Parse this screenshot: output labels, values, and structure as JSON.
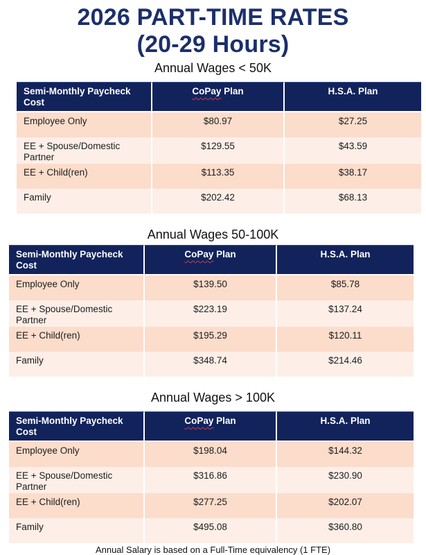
{
  "page": {
    "title_line1": "2026 PART-TIME RATES",
    "title_line2": "(20-29 Hours)",
    "footer": "Annual Salary is based on a Full-Time equivalency (1 FTE)"
  },
  "colors": {
    "header_navy": "#12235c",
    "title_navy": "#1b2f6b",
    "row_dark_peach": "#fcdccb",
    "row_light_peach": "#fdefe7",
    "spellcheck_red": "#cf3a4a"
  },
  "tables": [
    {
      "section_title": "Annual Wages < 50K",
      "columns": [
        "Semi-Monthly Paycheck Cost",
        "CoPay Plan",
        "H.S.A. Plan"
      ],
      "squiggle": {
        "column": 1,
        "word": "CoPay"
      },
      "rows": [
        {
          "label": "Employee Only",
          "copay": "$80.97",
          "hsa": "$27.25"
        },
        {
          "label": "EE + Spouse/Domestic Partner",
          "copay": "$129.55",
          "hsa": "$43.59"
        },
        {
          "label": "EE + Child(ren)",
          "copay": "$113.35",
          "hsa": "$38.17"
        },
        {
          "label": "Family",
          "copay": "$202.42",
          "hsa": "$68.13"
        }
      ]
    },
    {
      "section_title": "Annual Wages 50-100K",
      "columns": [
        "Semi-Monthly Paycheck Cost",
        "CoPay Plan",
        "H.S.A. Plan"
      ],
      "squiggle": {
        "column": 1,
        "word": "CoPay"
      },
      "rows": [
        {
          "label": "Employee Only",
          "copay": "$139.50",
          "hsa": "$85.78"
        },
        {
          "label": "EE + Spouse/Domestic Partner",
          "copay": "$223.19",
          "hsa": "$137.24"
        },
        {
          "label": "EE + Child(ren)",
          "copay": "$195.29",
          "hsa": "$120.11"
        },
        {
          "label": "Family",
          "copay": "$348.74",
          "hsa": "$214.46"
        }
      ]
    },
    {
      "section_title": "Annual Wages > 100K",
      "columns": [
        "Semi-Monthly Paycheck Cost",
        "CoPay Plan",
        "H.S.A. Plan"
      ],
      "squiggle": {
        "column": 1,
        "word": "CoPay"
      },
      "rows": [
        {
          "label": "Employee Only",
          "copay": "$198.04",
          "hsa": "$144.32"
        },
        {
          "label": "EE + Spouse/Domestic Partner",
          "copay": "$316.86",
          "hsa": "$230.90"
        },
        {
          "label": "EE + Child(ren)",
          "copay": "$277.25",
          "hsa": "$202.07"
        },
        {
          "label": "Family",
          "copay": "$495.08",
          "hsa": "$360.80"
        }
      ]
    }
  ]
}
